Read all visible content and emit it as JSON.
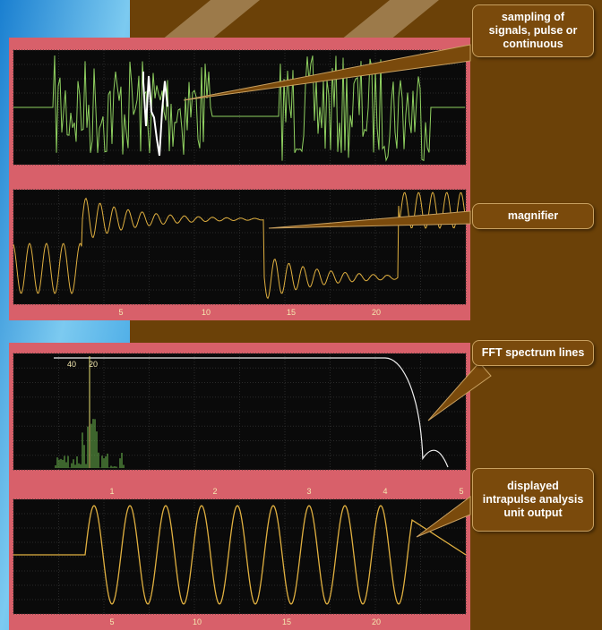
{
  "callouts": [
    {
      "text": "sampling of signals, pulse or continuous"
    },
    {
      "text": "magnifier"
    },
    {
      "text": "FFT spectrum lines"
    },
    {
      "text": "displayed intrapulse analysis unit output"
    }
  ],
  "screens": [
    {
      "panels": [
        {
          "x_labels": []
        },
        {
          "x_labels": [
            "5",
            "10",
            "15",
            "20"
          ]
        }
      ]
    },
    {
      "panels": [
        {
          "markers": [
            "40",
            "20"
          ],
          "x_labels": [
            "1",
            "2",
            "3",
            "4",
            "5"
          ]
        },
        {
          "x_labels": [
            "5",
            "10",
            "15",
            "20"
          ]
        }
      ]
    }
  ]
}
